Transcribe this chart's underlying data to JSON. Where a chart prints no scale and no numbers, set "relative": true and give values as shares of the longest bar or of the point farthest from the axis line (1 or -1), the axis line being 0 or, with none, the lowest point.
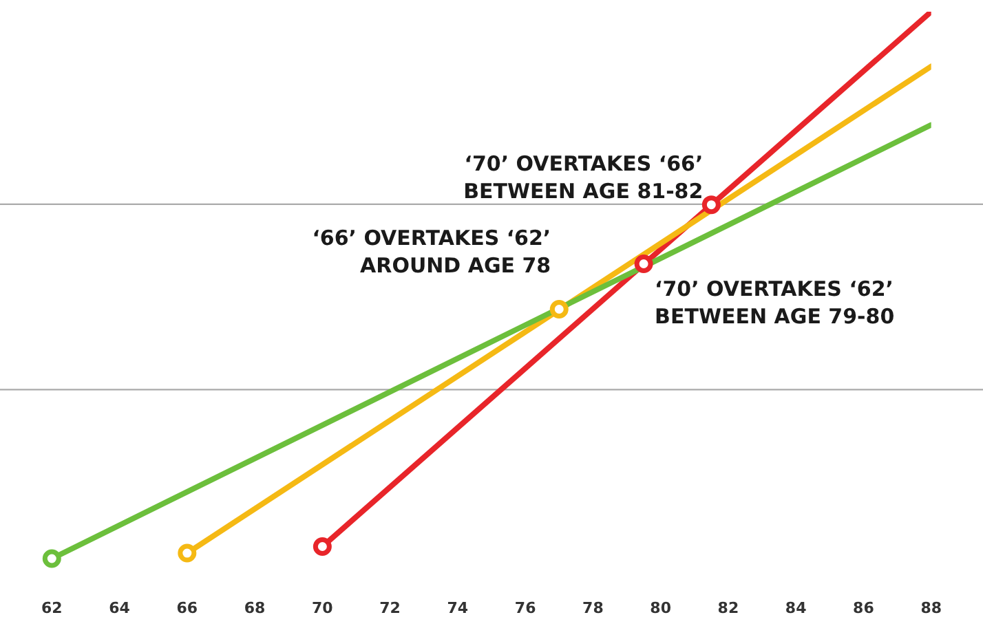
{
  "chart_data": {
    "type": "line",
    "relative": true,
    "xlim": [
      62,
      88
    ],
    "xticks": [
      62,
      64,
      66,
      68,
      70,
      72,
      74,
      76,
      78,
      80,
      82,
      84,
      86,
      88
    ],
    "grid": false,
    "legend": false,
    "line_style": "solid",
    "series": [
      {
        "marker": "none",
        "color": "#6cbf3c",
        "x": [
          62,
          88
        ],
        "values": [
          0,
          0.793
        ]
      },
      {
        "marker": "none",
        "color": "#f5b914",
        "x": [
          66,
          88
        ],
        "values": [
          0.01,
          0.9
        ]
      },
      {
        "marker": "none",
        "color": "#e8252a",
        "x": [
          70,
          88
        ],
        "values": [
          0.022,
          1
        ]
      },
      {
        "type": "scatter",
        "marker": "circle",
        "x": [
          62,
          66,
          70,
          77,
          79.5,
          81.5
        ],
        "values": [
          0,
          0.01,
          0.022,
          0.456,
          0.539,
          0.647
        ],
        "colors": [
          "#6cbf3c",
          "#f5b914",
          "#e8252a",
          "#f5b914",
          "#e8252a",
          "#e8252a"
        ]
      }
    ],
    "ref_lines": [
      {
        "axis": "y",
        "value": 0.648,
        "color": "#aaaaaa"
      },
      {
        "axis": "y",
        "value": 0.309,
        "color": "#aaaaaa"
      }
    ],
    "annotations": [
      {
        "text": "‘70’ OVERTAKES ‘66’\nBETWEEN AGE 81-82",
        "x": 81.5,
        "y": 0.647
      },
      {
        "text": "‘66’ OVERTAKES ‘62’\nAROUND AGE 78",
        "x": 77,
        "y": 0.456
      },
      {
        "text": "‘70’ OVERTAKES ‘62’\nBETWEEN AGE 79-80",
        "x": 79.5,
        "y": 0.539
      }
    ]
  }
}
